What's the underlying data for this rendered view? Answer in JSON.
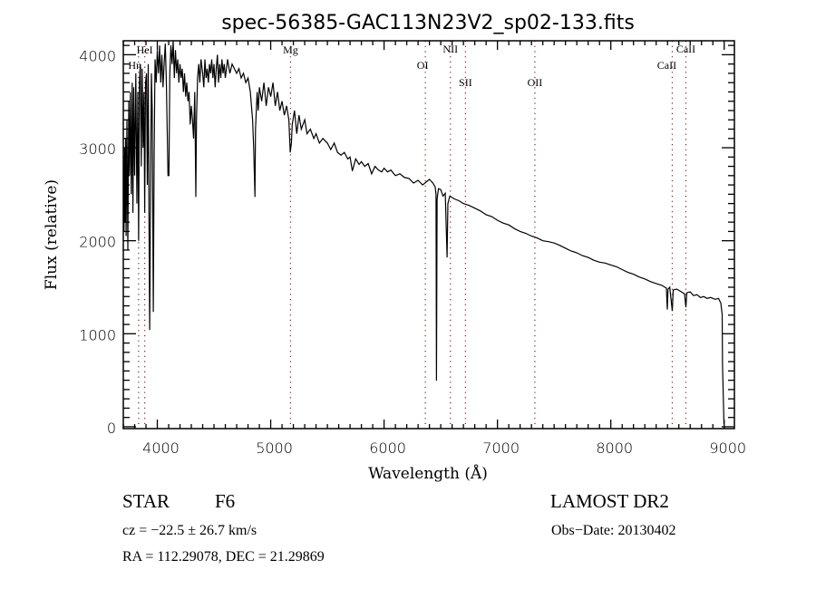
{
  "chart_data": {
    "type": "line",
    "title": "spec-56385-GAC113N23V2_sp02-133.fits",
    "xlabel": "Wavelength (Å)",
    "ylabel": "Flux (relative)",
    "xlim": [
      3700,
      9090
    ],
    "ylim": [
      -20,
      4150
    ],
    "x_ticks": [
      4000,
      5000,
      6000,
      7000,
      8000,
      9000
    ],
    "x_tick_labels": [
      "4000",
      "5000",
      "6000",
      "7000",
      "8000",
      "9000"
    ],
    "y_ticks": [
      0,
      1000,
      2000,
      3000,
      4000
    ],
    "y_tick_labels": [
      "0",
      "1000",
      "2000",
      "3000",
      "4000"
    ],
    "x_minor_step": 100,
    "y_minor_step": 100,
    "grid": false,
    "line_color": "#000000",
    "marker_color": "#8b1a1a",
    "spectral_lines": [
      {
        "name": "HeI",
        "wavelength": 3889
      },
      {
        "name": "Hη",
        "wavelength": 3835
      },
      {
        "name": "Mg",
        "wavelength": 5175
      },
      {
        "name": "OI",
        "wavelength": 6364
      },
      {
        "name": "NII",
        "wavelength": 6585
      },
      {
        "name": "SII",
        "wavelength": 6718
      },
      {
        "name": "OII",
        "wavelength": 7330
      },
      {
        "name": "CaII",
        "wavelength": 8662
      },
      {
        "name": "CaII",
        "wavelength": 8542
      }
    ],
    "series": [
      {
        "name": "spectrum",
        "points": [
          [
            3702,
            2900
          ],
          [
            3706,
            2100
          ],
          [
            3710,
            3000
          ],
          [
            3715,
            2200
          ],
          [
            3720,
            3100
          ],
          [
            3725,
            2050
          ],
          [
            3732,
            3300
          ],
          [
            3740,
            1900
          ],
          [
            3748,
            3500
          ],
          [
            3755,
            2700
          ],
          [
            3762,
            3600
          ],
          [
            3770,
            2500
          ],
          [
            3778,
            3700
          ],
          [
            3785,
            2300
          ],
          [
            3792,
            3650
          ],
          [
            3800,
            2700
          ],
          [
            3810,
            3800
          ],
          [
            3820,
            2400
          ],
          [
            3828,
            3600
          ],
          [
            3835,
            2000
          ],
          [
            3842,
            3700
          ],
          [
            3850,
            3900
          ],
          [
            3858,
            2800
          ],
          [
            3866,
            3850
          ],
          [
            3874,
            3000
          ],
          [
            3882,
            3600
          ],
          [
            3889,
            2300
          ],
          [
            3896,
            3700
          ],
          [
            3905,
            3800
          ],
          [
            3912,
            2600
          ],
          [
            3920,
            3900
          ],
          [
            3926,
            2300
          ],
          [
            3933,
            1040
          ],
          [
            3940,
            2500
          ],
          [
            3948,
            3800
          ],
          [
            3955,
            3400
          ],
          [
            3965,
            1235
          ],
          [
            3972,
            2900
          ],
          [
            3980,
            3950
          ],
          [
            3990,
            3700
          ],
          [
            4000,
            4050
          ],
          [
            4010,
            3800
          ],
          [
            4020,
            4100
          ],
          [
            4030,
            3700
          ],
          [
            4040,
            4000
          ],
          [
            4050,
            3650
          ],
          [
            4060,
            3900
          ],
          [
            4070,
            4120
          ],
          [
            4080,
            3700
          ],
          [
            4094,
            2700
          ],
          [
            4102,
            2700
          ],
          [
            4110,
            3800
          ],
          [
            4120,
            4100
          ],
          [
            4130,
            3900
          ],
          [
            4140,
            4150
          ],
          [
            4150,
            3750
          ],
          [
            4160,
            4050
          ],
          [
            4170,
            3800
          ],
          [
            4180,
            3950
          ],
          [
            4190,
            3700
          ],
          [
            4200,
            3900
          ],
          [
            4210,
            3750
          ],
          [
            4220,
            3850
          ],
          [
            4230,
            3600
          ],
          [
            4240,
            3800
          ],
          [
            4250,
            3550
          ],
          [
            4260,
            3700
          ],
          [
            4270,
            3500
          ],
          [
            4280,
            3600
          ],
          [
            4290,
            3250
          ],
          [
            4300,
            3450
          ],
          [
            4310,
            3300
          ],
          [
            4320,
            3100
          ],
          [
            4330,
            3600
          ],
          [
            4340,
            2470
          ],
          [
            4345,
            3300
          ],
          [
            4355,
            3750
          ],
          [
            4365,
            3900
          ],
          [
            4375,
            3700
          ],
          [
            4385,
            3950
          ],
          [
            4400,
            3800
          ],
          [
            4410,
            3650
          ],
          [
            4420,
            3950
          ],
          [
            4430,
            3750
          ],
          [
            4440,
            3850
          ],
          [
            4450,
            3700
          ],
          [
            4460,
            3900
          ],
          [
            4470,
            3800
          ],
          [
            4480,
            3950
          ],
          [
            4490,
            3750
          ],
          [
            4500,
            3900
          ],
          [
            4510,
            3650
          ],
          [
            4520,
            3850
          ],
          [
            4530,
            4000
          ],
          [
            4540,
            3700
          ],
          [
            4550,
            3900
          ],
          [
            4560,
            3750
          ],
          [
            4570,
            3950
          ],
          [
            4580,
            3800
          ],
          [
            4590,
            3900
          ],
          [
            4600,
            3750
          ],
          [
            4620,
            3950
          ],
          [
            4640,
            3800
          ],
          [
            4660,
            3900
          ],
          [
            4680,
            3850
          ],
          [
            4700,
            3800
          ],
          [
            4720,
            3850
          ],
          [
            4740,
            3750
          ],
          [
            4760,
            3800
          ],
          [
            4780,
            3700
          ],
          [
            4800,
            3750
          ],
          [
            4820,
            3600
          ],
          [
            4840,
            3300
          ],
          [
            4850,
            3000
          ],
          [
            4861,
            2470
          ],
          [
            4866,
            3200
          ],
          [
            4880,
            3600
          ],
          [
            4890,
            3400
          ],
          [
            4900,
            3650
          ],
          [
            4920,
            3500
          ],
          [
            4940,
            3700
          ],
          [
            4960,
            3450
          ],
          [
            4980,
            3650
          ],
          [
            5000,
            3550
          ],
          [
            5020,
            3700
          ],
          [
            5040,
            3450
          ],
          [
            5060,
            3600
          ],
          [
            5080,
            3400
          ],
          [
            5100,
            3500
          ],
          [
            5120,
            3350
          ],
          [
            5140,
            3450
          ],
          [
            5160,
            3300
          ],
          [
            5172,
            2950
          ],
          [
            5183,
            3050
          ],
          [
            5190,
            3250
          ],
          [
            5210,
            3400
          ],
          [
            5230,
            3150
          ],
          [
            5250,
            3350
          ],
          [
            5270,
            3200
          ],
          [
            5300,
            3300
          ],
          [
            5320,
            3150
          ],
          [
            5350,
            3200
          ],
          [
            5380,
            3100
          ],
          [
            5400,
            3150
          ],
          [
            5430,
            3050
          ],
          [
            5460,
            3100
          ],
          [
            5500,
            3050
          ],
          [
            5530,
            2980
          ],
          [
            5560,
            3050
          ],
          [
            5590,
            2950
          ],
          [
            5620,
            2920
          ],
          [
            5650,
            2950
          ],
          [
            5680,
            2880
          ],
          [
            5700,
            2900
          ],
          [
            5720,
            2750
          ],
          [
            5750,
            2880
          ],
          [
            5780,
            2820
          ],
          [
            5800,
            2850
          ],
          [
            5830,
            2800
          ],
          [
            5860,
            2830
          ],
          [
            5890,
            2720
          ],
          [
            5920,
            2800
          ],
          [
            5950,
            2760
          ],
          [
            5980,
            2740
          ],
          [
            6000,
            2780
          ],
          [
            6030,
            2740
          ],
          [
            6060,
            2760
          ],
          [
            6100,
            2700
          ],
          [
            6140,
            2720
          ],
          [
            6180,
            2680
          ],
          [
            6220,
            2670
          ],
          [
            6260,
            2620
          ],
          [
            6300,
            2650
          ],
          [
            6340,
            2600
          ],
          [
            6380,
            2640
          ],
          [
            6400,
            2660
          ],
          [
            6430,
            2620
          ],
          [
            6450,
            2580
          ],
          [
            6458,
            2500
          ],
          [
            6462,
            495
          ],
          [
            6468,
            2450
          ],
          [
            6480,
            2560
          ],
          [
            6500,
            2550
          ],
          [
            6520,
            2480
          ],
          [
            6540,
            2510
          ],
          [
            6556,
            1820
          ],
          [
            6563,
            2400
          ],
          [
            6580,
            2480
          ],
          [
            6620,
            2450
          ],
          [
            6660,
            2430
          ],
          [
            6700,
            2400
          ],
          [
            6750,
            2380
          ],
          [
            6800,
            2350
          ],
          [
            6850,
            2320
          ],
          [
            6900,
            2280
          ],
          [
            6950,
            2260
          ],
          [
            7000,
            2220
          ],
          [
            7050,
            2190
          ],
          [
            7100,
            2170
          ],
          [
            7150,
            2130
          ],
          [
            7200,
            2100
          ],
          [
            7250,
            2080
          ],
          [
            7300,
            2050
          ],
          [
            7350,
            2030
          ],
          [
            7400,
            2000
          ],
          [
            7450,
            1990
          ],
          [
            7500,
            1975
          ],
          [
            7550,
            1950
          ],
          [
            7600,
            1920
          ],
          [
            7650,
            1890
          ],
          [
            7700,
            1870
          ],
          [
            7750,
            1840
          ],
          [
            7800,
            1820
          ],
          [
            7850,
            1790
          ],
          [
            7900,
            1770
          ],
          [
            7950,
            1760
          ],
          [
            8000,
            1740
          ],
          [
            8050,
            1720
          ],
          [
            8100,
            1690
          ],
          [
            8150,
            1660
          ],
          [
            8200,
            1640
          ],
          [
            8250,
            1610
          ],
          [
            8300,
            1590
          ],
          [
            8350,
            1560
          ],
          [
            8400,
            1540
          ],
          [
            8450,
            1520
          ],
          [
            8490,
            1490
          ],
          [
            8498,
            1260
          ],
          [
            8505,
            1480
          ],
          [
            8520,
            1500
          ],
          [
            8542,
            1245
          ],
          [
            8550,
            1470
          ],
          [
            8580,
            1480
          ],
          [
            8610,
            1460
          ],
          [
            8650,
            1430
          ],
          [
            8662,
            1285
          ],
          [
            8670,
            1440
          ],
          [
            8700,
            1450
          ],
          [
            8730,
            1410
          ],
          [
            8760,
            1420
          ],
          [
            8790,
            1390
          ],
          [
            8820,
            1400
          ],
          [
            8850,
            1380
          ],
          [
            8880,
            1390
          ],
          [
            8920,
            1370
          ],
          [
            8950,
            1380
          ],
          [
            8970,
            1330
          ],
          [
            8982,
            1210
          ],
          [
            8985,
            660
          ],
          [
            8998,
            30
          ]
        ]
      }
    ]
  },
  "info": {
    "object_type": "STAR",
    "subclass": "F6",
    "survey": "LAMOST DR2",
    "cz": "cz = −22.5 ± 26.7 km/s",
    "obs_date": "Obs−Date: 20130402",
    "coords": "RA = 112.29078, DEC =  21.29869"
  }
}
